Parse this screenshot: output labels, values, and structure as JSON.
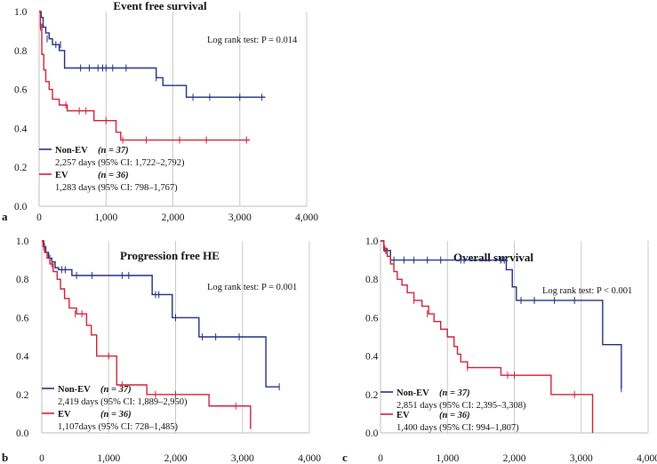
{
  "chart_data": [
    {
      "type": "line",
      "panel": "a",
      "title": "Event free survival",
      "logrank": "Log rank test: P = 0.014",
      "xlim": [
        0,
        4000
      ],
      "ylim": [
        0,
        1
      ],
      "x_ticks": [
        "0",
        "1,000",
        "2,000",
        "3,000",
        "4,000"
      ],
      "y_ticks": [
        "0.0",
        "0.2",
        "0.4",
        "0.6",
        "0.8",
        "1.0"
      ],
      "grid": "vertical",
      "series": [
        {
          "name": "Non-EV",
          "n_label": "(n = 37)",
          "days": "2,257  days (95% CI:  1,722–2,792)",
          "color": "#1f2f80",
          "x": [
            0,
            30,
            60,
            100,
            150,
            200,
            300,
            380,
            1750,
            1850,
            2200,
            3380
          ],
          "y": [
            1.0,
            0.97,
            0.92,
            0.89,
            0.86,
            0.83,
            0.8,
            0.71,
            0.66,
            0.62,
            0.56,
            0.56
          ],
          "censors_x": [
            40,
            120,
            250,
            320,
            620,
            750,
            880,
            950,
            1000,
            1100,
            1300,
            1750,
            2300,
            2550,
            3000,
            3330
          ],
          "censors_y": [
            0.92,
            0.86,
            0.83,
            0.83,
            0.71,
            0.71,
            0.71,
            0.71,
            0.71,
            0.71,
            0.71,
            0.66,
            0.56,
            0.56,
            0.56,
            0.56
          ]
        },
        {
          "name": "EV",
          "n_label": "(n = 36)",
          "days": "1,283  days (95% CI:  798–1,767)",
          "color": "#d21e36",
          "x": [
            0,
            20,
            40,
            70,
            100,
            150,
            200,
            300,
            420,
            820,
            1150,
            1220,
            3150
          ],
          "y": [
            1.0,
            0.92,
            0.78,
            0.7,
            0.64,
            0.6,
            0.55,
            0.52,
            0.49,
            0.44,
            0.38,
            0.34,
            0.34
          ],
          "censors_x": [
            20,
            400,
            600,
            700,
            1000,
            1250,
            1600,
            2100,
            2500,
            3100
          ],
          "censors_y": [
            0.92,
            0.52,
            0.49,
            0.49,
            0.44,
            0.34,
            0.34,
            0.34,
            0.34,
            0.34
          ]
        }
      ]
    },
    {
      "type": "line",
      "panel": "b",
      "title": "Progression free HE",
      "logrank": "Log rank test: P = 0.001",
      "xlim": [
        0,
        4000
      ],
      "ylim": [
        0,
        1
      ],
      "x_ticks": [
        "0",
        "1,000",
        "2,000",
        "3,000",
        "4,000"
      ],
      "y_ticks": [
        "0.0",
        "0.2",
        "0.4",
        "0.6",
        "0.8",
        "1.0"
      ],
      "grid": "vertical",
      "series": [
        {
          "name": "Non-EV",
          "n_label": "(n = 37)",
          "days": "2,419  days (95% CI:  1,889–2,950)",
          "color": "#1f2f80",
          "x": [
            0,
            30,
            60,
            100,
            150,
            200,
            250,
            450,
            1650,
            1950,
            2350,
            3350,
            3550
          ],
          "y": [
            1.0,
            0.97,
            0.94,
            0.91,
            0.89,
            0.86,
            0.85,
            0.82,
            0.72,
            0.6,
            0.5,
            0.24,
            0.24
          ],
          "censors_x": [
            40,
            120,
            300,
            350,
            520,
            750,
            1200,
            1300,
            1700,
            1750,
            2000,
            2400,
            2600,
            2950,
            3550
          ],
          "censors_y": [
            0.97,
            0.91,
            0.85,
            0.85,
            0.82,
            0.82,
            0.82,
            0.82,
            0.72,
            0.72,
            0.6,
            0.5,
            0.5,
            0.5,
            0.24
          ]
        },
        {
          "name": "EV",
          "n_label": "(n = 36)",
          "days": "1,107days (95% CI:  728–1,485)",
          "color": "#d21e36",
          "x": [
            0,
            20,
            40,
            80,
            120,
            170,
            230,
            280,
            340,
            410,
            520,
            670,
            740,
            820,
            1120,
            1570,
            2500,
            3120,
            3120
          ],
          "y": [
            1.0,
            0.97,
            0.94,
            0.91,
            0.88,
            0.84,
            0.8,
            0.75,
            0.7,
            0.65,
            0.62,
            0.56,
            0.51,
            0.4,
            0.25,
            0.2,
            0.14,
            0.14,
            0.02
          ],
          "censors_x": [
            30,
            150,
            500,
            600,
            1000,
            1200,
            1700,
            2000,
            2900
          ],
          "censors_y": [
            0.97,
            0.88,
            0.62,
            0.62,
            0.4,
            0.25,
            0.2,
            0.2,
            0.14
          ]
        }
      ]
    },
    {
      "type": "line",
      "panel": "c",
      "title": "Overall survival",
      "logrank": "Log rank test: P < 0.001",
      "xlim": [
        0,
        4000
      ],
      "ylim": [
        0,
        1
      ],
      "x_ticks": [
        "0",
        "1,000",
        "2,000",
        "3,000",
        "4,000"
      ],
      "y_ticks": [
        "0.0",
        "0.2",
        "0.4",
        "0.6",
        "0.8",
        "1.0"
      ],
      "grid": "vertical",
      "series": [
        {
          "name": "Non-EV",
          "n_label": "(n = 37)",
          "days": "2,851  days (95% CI: 2,395–3,308)",
          "color": "#1f2f80",
          "x": [
            0,
            50,
            150,
            1880,
            1970,
            2030,
            3320,
            3600
          ],
          "y": [
            1.0,
            0.95,
            0.9,
            0.85,
            0.76,
            0.69,
            0.46,
            0.23
          ],
          "censors_x": [
            80,
            200,
            350,
            500,
            700,
            900,
            1200,
            1250,
            1800,
            1850,
            2100,
            2300,
            2600,
            2900,
            3600
          ],
          "censors_y": [
            0.95,
            0.9,
            0.9,
            0.9,
            0.9,
            0.9,
            0.9,
            0.9,
            0.9,
            0.9,
            0.69,
            0.69,
            0.69,
            0.69,
            0.23
          ]
        },
        {
          "name": "EV",
          "n_label": "(n = 36)",
          "days": "1,400  days (95% CI: 994–1,807)",
          "color": "#d21e36",
          "x": [
            0,
            50,
            100,
            150,
            200,
            250,
            320,
            400,
            500,
            620,
            720,
            800,
            900,
            1000,
            1100,
            1150,
            1200,
            1300,
            1800,
            2550,
            3170,
            3170
          ],
          "y": [
            1.0,
            0.96,
            0.92,
            0.88,
            0.84,
            0.8,
            0.77,
            0.73,
            0.69,
            0.66,
            0.62,
            0.58,
            0.54,
            0.5,
            0.45,
            0.41,
            0.37,
            0.34,
            0.3,
            0.2,
            0.2,
            0.0
          ],
          "censors_x": [
            60,
            500,
            700,
            1300,
            1900,
            2000,
            2900
          ],
          "censors_y": [
            0.96,
            0.69,
            0.62,
            0.34,
            0.3,
            0.3,
            0.2
          ]
        }
      ]
    }
  ]
}
